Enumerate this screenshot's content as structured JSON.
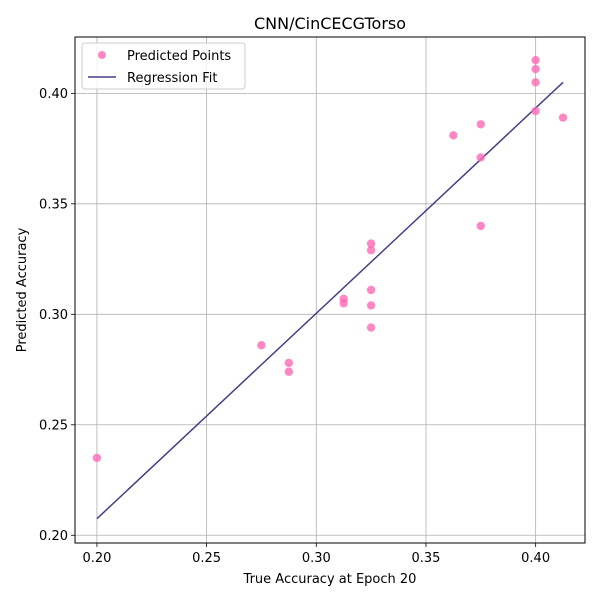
{
  "chart_data": {
    "type": "scatter",
    "title": "CNN/CinCECGTorso",
    "xlabel": "True Accuracy at Epoch 20",
    "ylabel": "Predicted Accuracy",
    "xlim": [
      0.19,
      0.4225
    ],
    "ylim": [
      0.1965,
      0.4255
    ],
    "xticks": [
      0.2,
      0.25,
      0.3,
      0.35,
      0.4
    ],
    "xtick_labels": [
      "0.20",
      "0.25",
      "0.30",
      "0.35",
      "0.40"
    ],
    "yticks": [
      0.2,
      0.25,
      0.3,
      0.35,
      0.4
    ],
    "ytick_labels": [
      "0.20",
      "0.25",
      "0.30",
      "0.35",
      "0.40"
    ],
    "grid": true,
    "legend_position": "top-left",
    "series": [
      {
        "name": "Predicted Points",
        "kind": "points",
        "color": "#ff69b4",
        "points": [
          [
            0.2,
            0.235
          ],
          [
            0.275,
            0.286
          ],
          [
            0.2875,
            0.278
          ],
          [
            0.2875,
            0.274
          ],
          [
            0.3125,
            0.307
          ],
          [
            0.3125,
            0.305
          ],
          [
            0.325,
            0.332
          ],
          [
            0.325,
            0.329
          ],
          [
            0.325,
            0.311
          ],
          [
            0.325,
            0.304
          ],
          [
            0.325,
            0.294
          ],
          [
            0.3625,
            0.381
          ],
          [
            0.375,
            0.386
          ],
          [
            0.375,
            0.371
          ],
          [
            0.375,
            0.34
          ],
          [
            0.4,
            0.415
          ],
          [
            0.4,
            0.411
          ],
          [
            0.4,
            0.405
          ],
          [
            0.4,
            0.392
          ],
          [
            0.4125,
            0.389
          ]
        ]
      },
      {
        "name": "Regression Fit",
        "kind": "line",
        "color": "#483d8b",
        "points": [
          [
            0.2,
            0.2075
          ],
          [
            0.4125,
            0.405
          ]
        ]
      }
    ]
  }
}
